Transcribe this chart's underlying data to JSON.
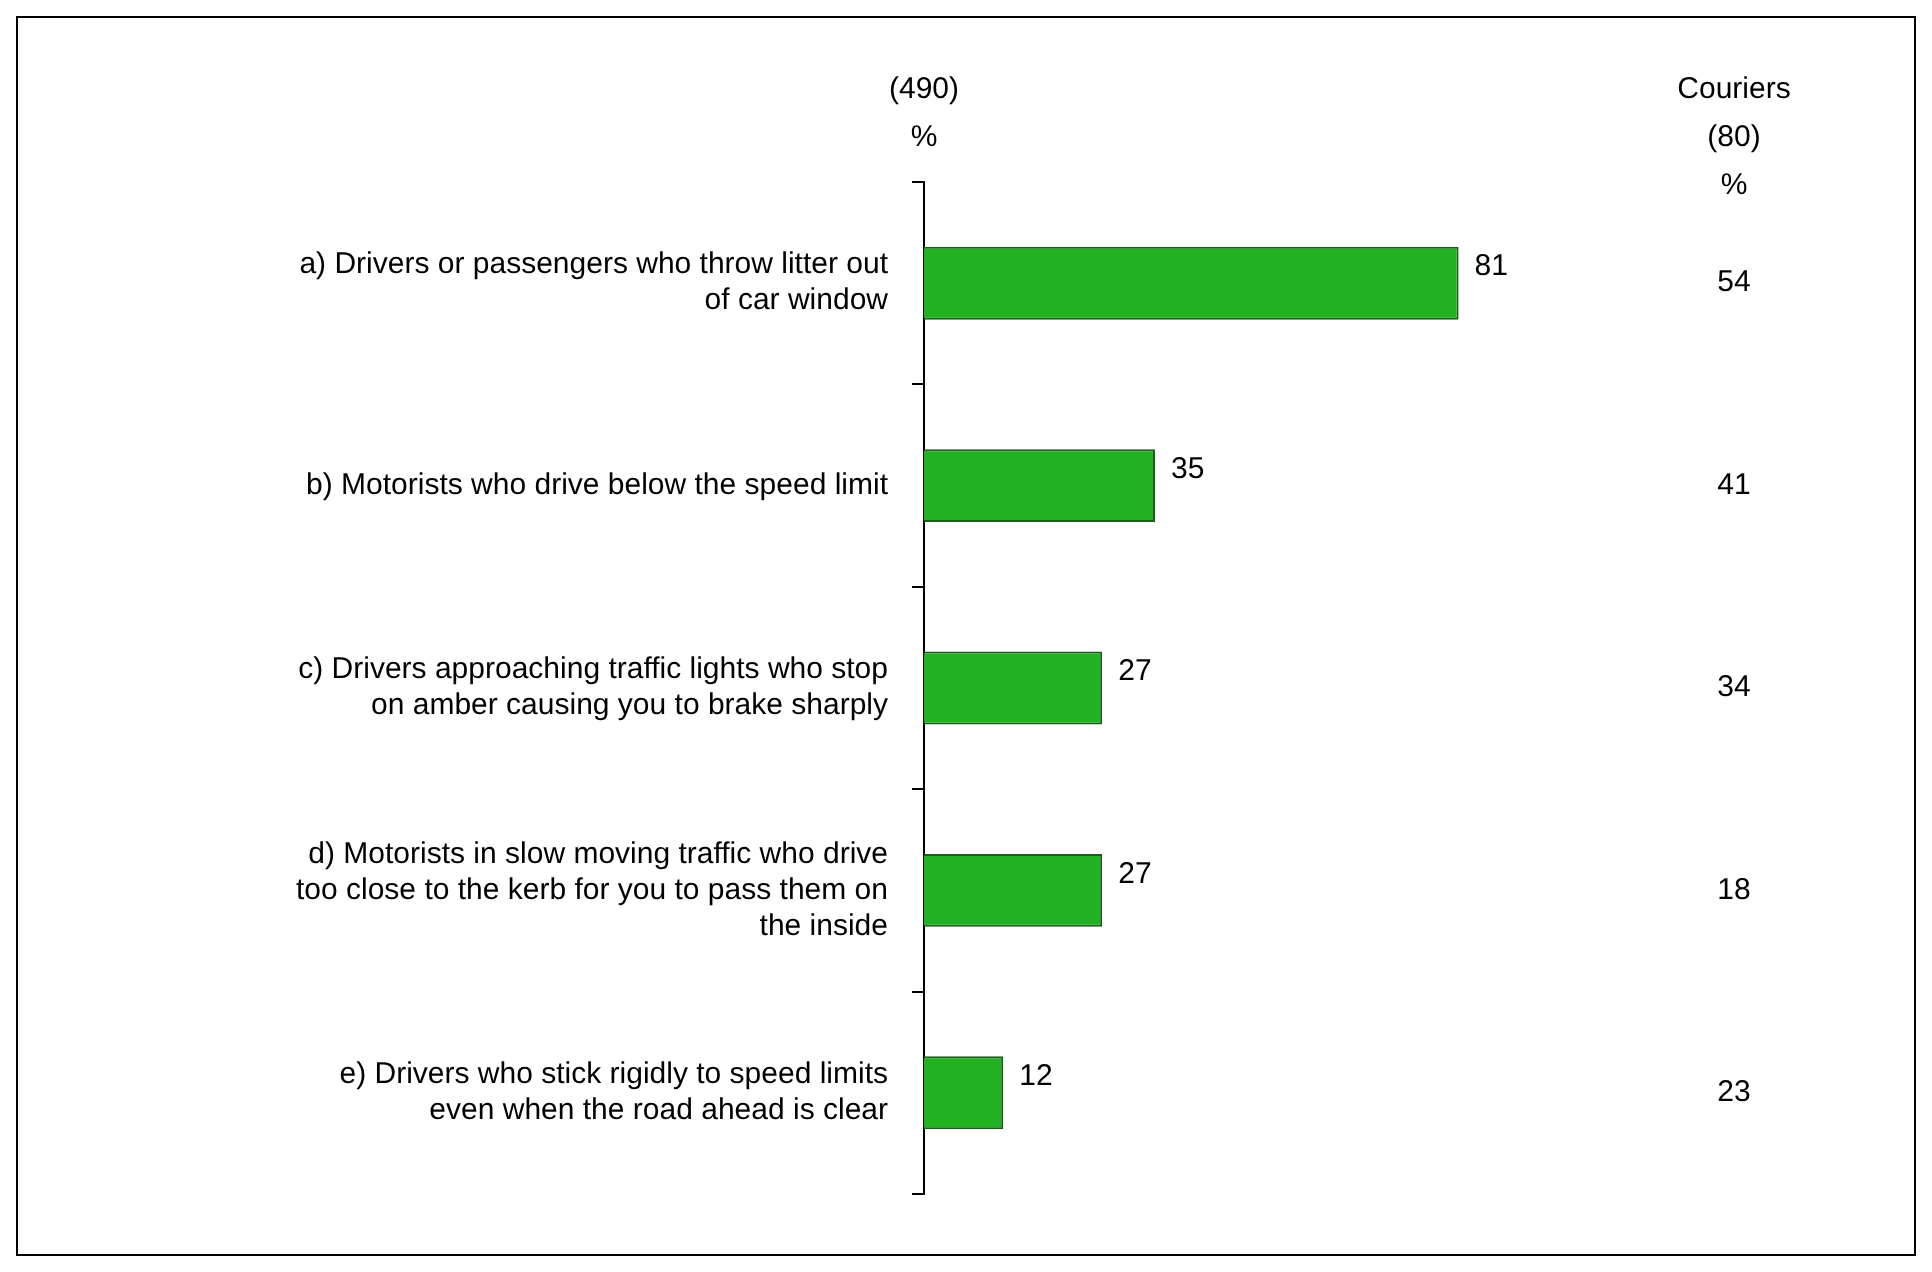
{
  "chart_data": {
    "type": "bar",
    "orientation": "horizontal",
    "data_labels": true,
    "categories": [
      "a) Drivers or passengers who throw litter out of car window",
      "b) Motorists who drive below the speed limit",
      "c) Drivers approaching traffic lights who stop on amber causing you to brake sharply",
      "d) Motorists in slow moving traffic who drive too close to the kerb for you to pass them on the inside",
      "e) Drivers who stick rigidly to speed limits even when the road ahead is clear"
    ],
    "series": [
      {
        "name": "(490) %",
        "color": "#22b122",
        "values": [
          81,
          35,
          27,
          27,
          12
        ]
      }
    ],
    "annotations": [
      "Couriers (80) %",
      "54",
      "41",
      "34",
      "18",
      "23"
    ]
  }
}
